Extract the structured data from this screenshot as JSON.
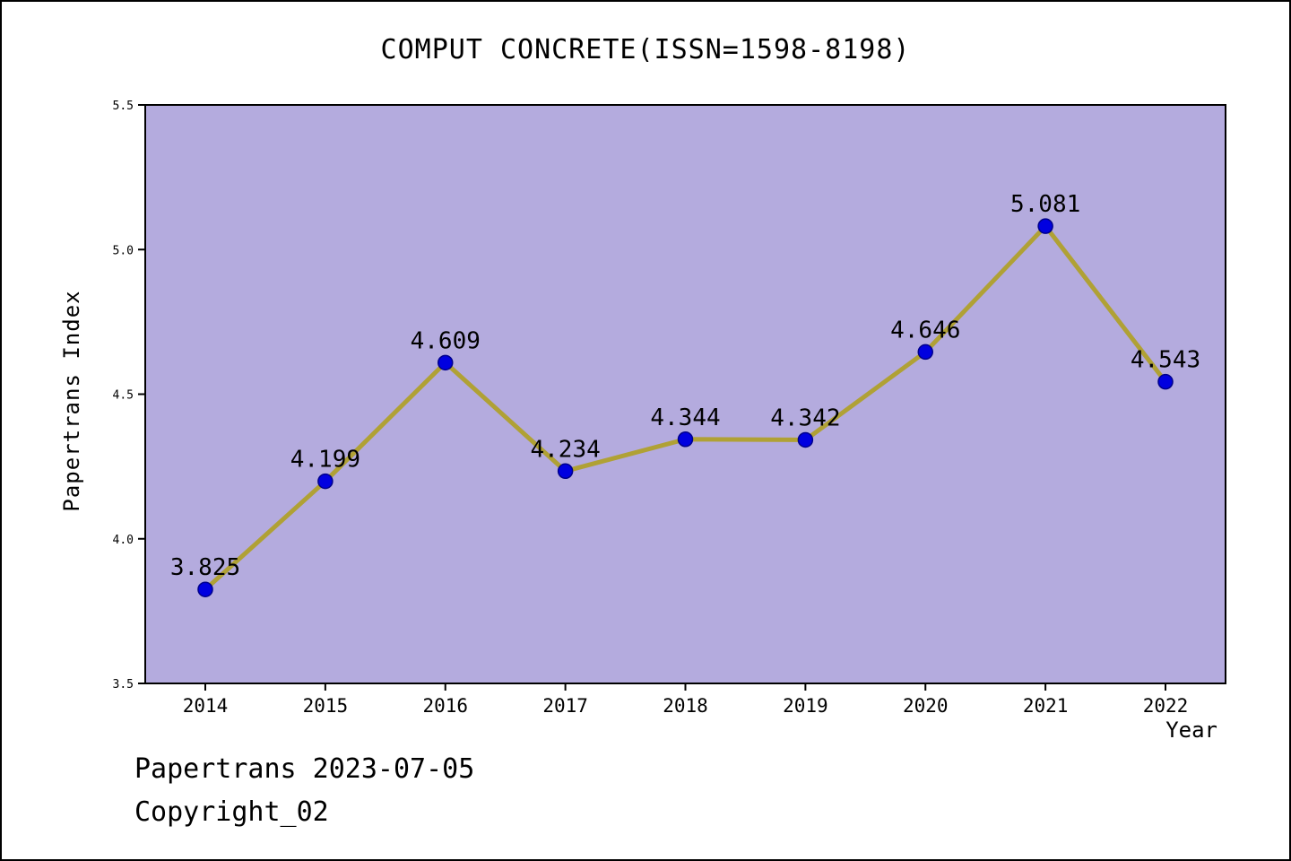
{
  "page": {
    "footer_line1": "Papertrans 2023-07-05",
    "footer_line2": "Copyright_02"
  },
  "chart_data": {
    "type": "line",
    "title": "COMPUT CONCRETE(ISSN=1598-8198)",
    "categories": [
      "2014",
      "2015",
      "2016",
      "2017",
      "2018",
      "2019",
      "2020",
      "2021",
      "2022"
    ],
    "values": [
      3.825,
      4.199,
      4.609,
      4.234,
      4.344,
      4.342,
      4.646,
      5.081,
      4.543
    ],
    "point_labels": [
      "3.825",
      "4.199",
      "4.609",
      "4.234",
      "4.344",
      "4.342",
      "4.646",
      "5.081",
      "4.543"
    ],
    "xlabel": "Year",
    "ylabel": "Papertrans Index",
    "ylim": [
      3.5,
      5.5
    ],
    "yticks": [
      3.5,
      4.0,
      4.5,
      5.0,
      5.5
    ],
    "ytick_labels": [
      "3.5",
      "4.0",
      "4.5",
      "5.0",
      "5.5"
    ],
    "grid": false,
    "legend": "none",
    "colors": {
      "plot_background": "#b4abde",
      "line": "#b0a135",
      "marker_fill": "#0000e0",
      "marker_edge": "#00008b",
      "label_text": "#000000",
      "axis": "#000000"
    }
  }
}
